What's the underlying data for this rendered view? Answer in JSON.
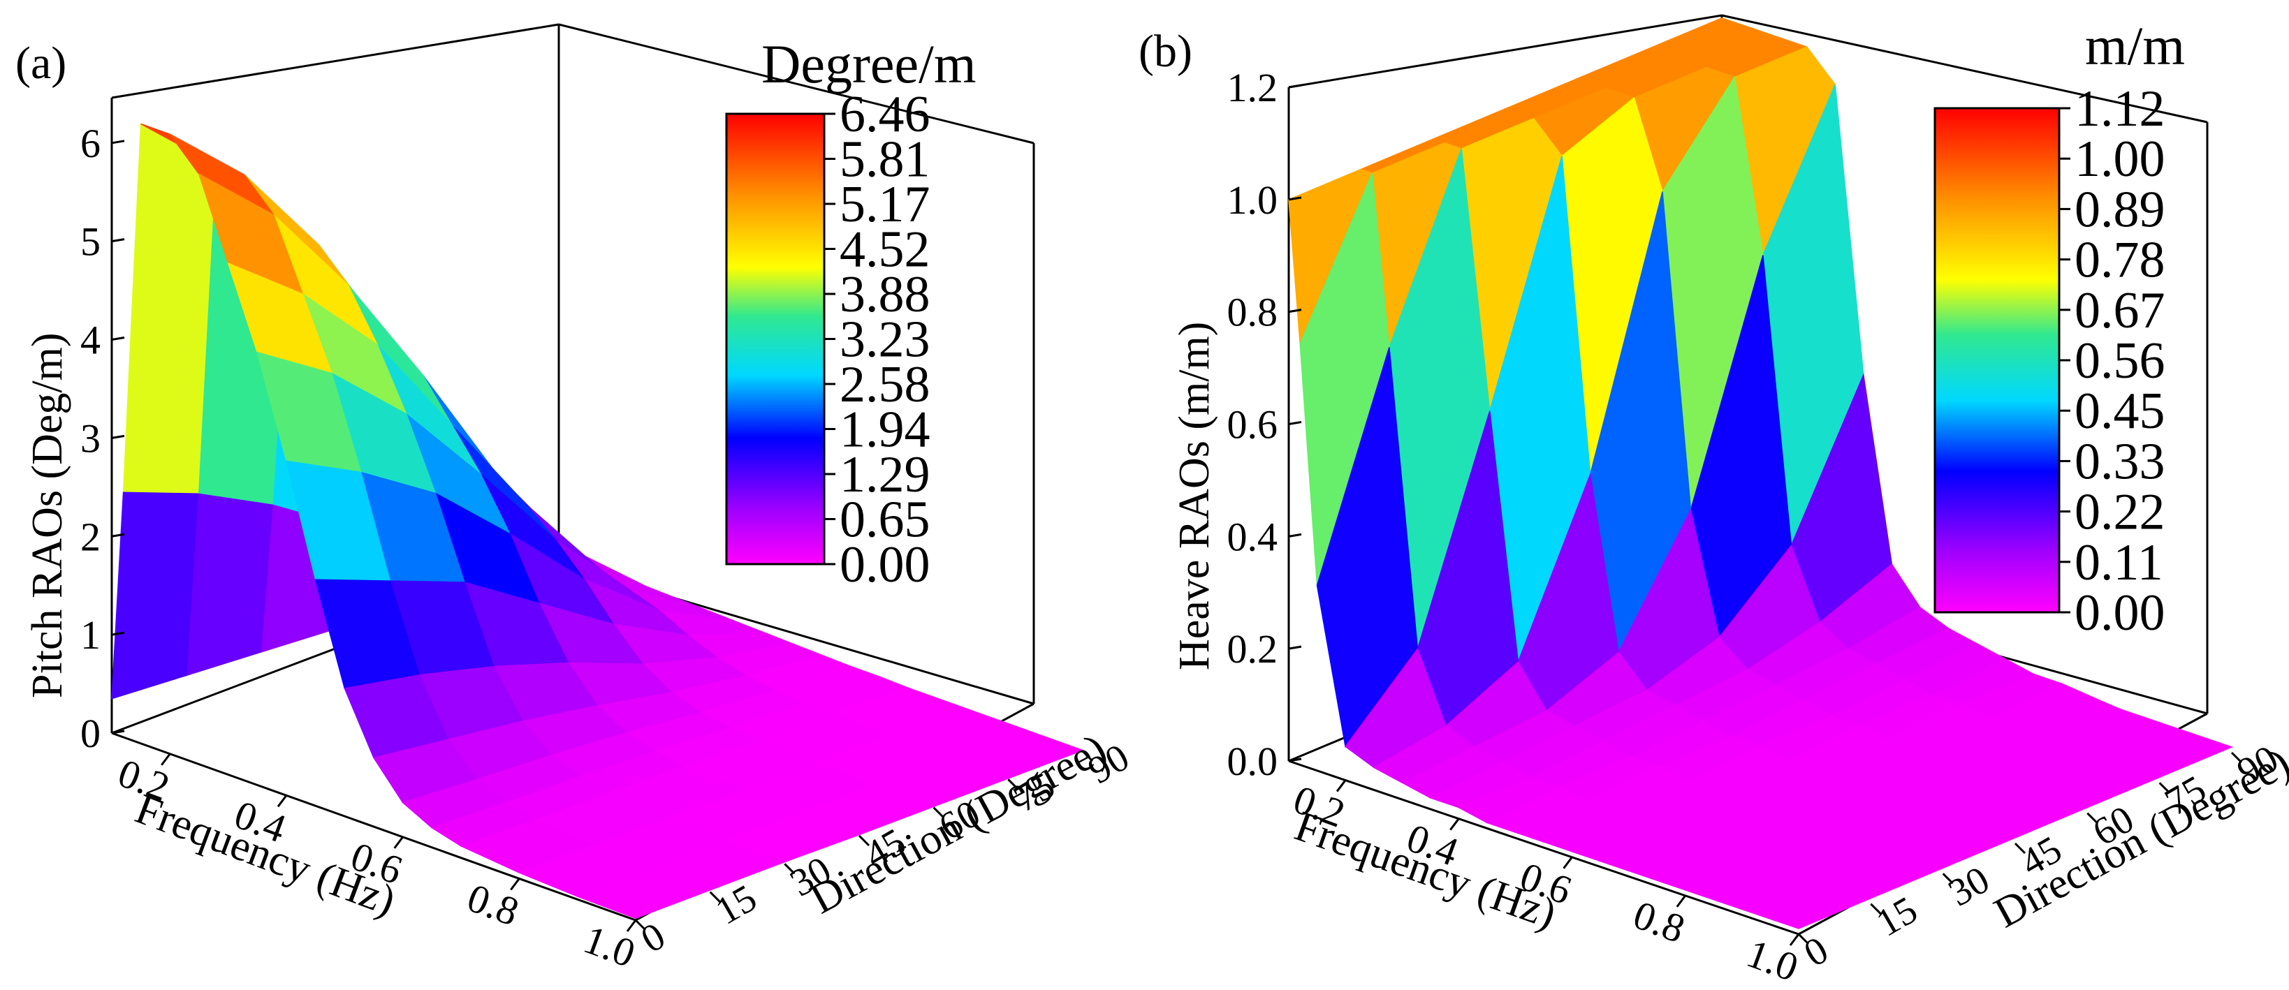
{
  "chart_data": [
    {
      "type": "surface3d",
      "panel_label": "(a)",
      "xlabel": "Frequency (Hz)",
      "ylabel": "Direction (Degree)",
      "zlabel": "Pitch RAOs (Deg/m)",
      "colorbar_title": "Degree/m",
      "x_ticks": [
        "0.2",
        "0.4",
        "0.6",
        "0.8",
        "1.0"
      ],
      "y_ticks": [
        "0",
        "15",
        "30",
        "45",
        "60",
        "75",
        "90"
      ],
      "z_ticks": [
        "0",
        "1",
        "2",
        "3",
        "4",
        "5",
        "6"
      ],
      "colorbar_ticks": [
        "6.46",
        "5.81",
        "5.17",
        "4.52",
        "3.88",
        "3.23",
        "2.58",
        "1.94",
        "1.29",
        "0.65",
        "0.00"
      ],
      "xlim": [
        0.1,
        1.0
      ],
      "ylim": [
        0,
        90
      ],
      "zlim": [
        0,
        6.46
      ],
      "frequency": [
        0.1,
        0.12,
        0.15,
        0.2,
        0.25,
        0.3,
        0.35,
        0.4,
        0.45,
        0.5,
        0.55,
        0.6,
        0.65,
        0.7,
        0.8,
        0.9,
        1.0
      ],
      "direction": [
        0,
        15,
        30,
        45,
        60,
        75,
        90
      ],
      "values_by_direction": [
        [
          0.35,
          2.5,
          6.3,
          6.3,
          6.0,
          5.2,
          4.4,
          3.4,
          2.3,
          1.3,
          0.7,
          0.35,
          0.2,
          0.12,
          0.06,
          0.03,
          0.02
        ],
        [
          0.3,
          2.2,
          5.6,
          5.6,
          5.3,
          4.6,
          3.9,
          3.0,
          2.0,
          1.15,
          0.6,
          0.3,
          0.17,
          0.1,
          0.05,
          0.03,
          0.02
        ],
        [
          0.25,
          1.8,
          4.6,
          4.6,
          4.3,
          3.8,
          3.2,
          2.5,
          1.7,
          0.95,
          0.5,
          0.26,
          0.15,
          0.09,
          0.05,
          0.03,
          0.02
        ],
        [
          0.2,
          1.3,
          3.3,
          3.3,
          3.1,
          2.7,
          2.3,
          1.8,
          1.2,
          0.7,
          0.37,
          0.2,
          0.12,
          0.07,
          0.04,
          0.02,
          0.01
        ],
        [
          0.12,
          0.8,
          1.9,
          1.9,
          1.8,
          1.6,
          1.35,
          1.05,
          0.7,
          0.4,
          0.22,
          0.12,
          0.07,
          0.05,
          0.03,
          0.02,
          0.01
        ],
        [
          0.06,
          0.35,
          0.8,
          0.8,
          0.75,
          0.65,
          0.55,
          0.45,
          0.3,
          0.18,
          0.1,
          0.06,
          0.04,
          0.03,
          0.02,
          0.01,
          0.01
        ],
        [
          0.02,
          0.05,
          0.1,
          0.1,
          0.09,
          0.08,
          0.07,
          0.06,
          0.05,
          0.04,
          0.03,
          0.02,
          0.02,
          0.01,
          0.01,
          0.01,
          0.01
        ]
      ]
    },
    {
      "type": "surface3d",
      "panel_label": "(b)",
      "xlabel": "Frequency (Hz)",
      "ylabel": "Direction (Degree)",
      "zlabel": "Heave RAOs (m/m)",
      "colorbar_title": "m/m",
      "x_ticks": [
        "0.2",
        "0.4",
        "0.6",
        "0.8",
        "1.0"
      ],
      "y_ticks": [
        "0",
        "15",
        "30",
        "45",
        "60",
        "75",
        "90"
      ],
      "z_ticks": [
        "0.0",
        "0.2",
        "0.4",
        "0.6",
        "0.8",
        "1.0",
        "1.2"
      ],
      "colorbar_ticks": [
        "1.12",
        "1.00",
        "0.89",
        "0.78",
        "0.67",
        "0.56",
        "0.45",
        "0.33",
        "0.22",
        "0.11",
        "0.00"
      ],
      "xlim": [
        0.1,
        1.0
      ],
      "ylim": [
        0,
        90
      ],
      "zlim": [
        0,
        1.2
      ],
      "frequency": [
        0.1,
        0.12,
        0.15,
        0.2,
        0.25,
        0.3,
        0.35,
        0.4,
        0.45,
        0.5,
        0.55,
        0.6,
        0.65,
        0.7,
        0.8,
        0.9,
        1.0
      ],
      "direction": [
        0,
        15,
        30,
        45,
        60,
        75,
        90
      ],
      "values_by_direction": [
        [
          1.0,
          0.75,
          0.33,
          0.06,
          0.04,
          0.03,
          0.02,
          0.02,
          0.01,
          0.01,
          0.01,
          0.01,
          0.01,
          0.01,
          0.01,
          0.01,
          0.01
        ],
        [
          1.0,
          1.0,
          0.7,
          0.18,
          0.06,
          0.04,
          0.03,
          0.02,
          0.02,
          0.01,
          0.01,
          0.01,
          0.01,
          0.01,
          0.01,
          0.01,
          0.01
        ],
        [
          1.0,
          1.0,
          1.0,
          0.55,
          0.12,
          0.05,
          0.04,
          0.03,
          0.02,
          0.02,
          0.01,
          0.01,
          0.01,
          0.01,
          0.01,
          0.01,
          0.01
        ],
        [
          1.0,
          1.0,
          1.0,
          0.95,
          0.4,
          0.1,
          0.05,
          0.04,
          0.03,
          0.02,
          0.02,
          0.01,
          0.01,
          0.01,
          0.01,
          0.01,
          0.01
        ],
        [
          1.0,
          1.0,
          1.0,
          1.0,
          0.85,
          0.3,
          0.09,
          0.05,
          0.04,
          0.03,
          0.02,
          0.02,
          0.01,
          0.01,
          0.01,
          0.01,
          0.01
        ],
        [
          1.0,
          1.0,
          1.0,
          1.0,
          1.0,
          0.7,
          0.2,
          0.08,
          0.05,
          0.04,
          0.03,
          0.02,
          0.02,
          0.01,
          0.01,
          0.01,
          0.01
        ],
        [
          1.0,
          1.0,
          1.0,
          1.0,
          1.0,
          0.95,
          0.45,
          0.13,
          0.07,
          0.05,
          0.04,
          0.03,
          0.02,
          0.02,
          0.01,
          0.01,
          0.01
        ]
      ]
    }
  ]
}
